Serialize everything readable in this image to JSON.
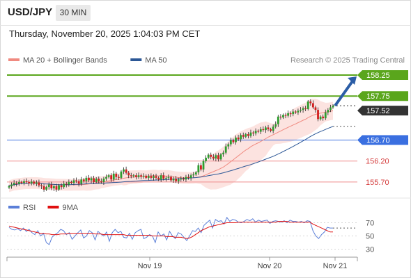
{
  "header": {
    "symbol": "USD/JPY",
    "timeframe": "30 MIN",
    "datetime": "Thursday, November 20, 2025 1:04:03 PM CET"
  },
  "colors": {
    "ma20": "#f08a80",
    "ma50": "#2c5796",
    "bollinger_fill": "#fbdad5",
    "resistance": "#5aa61c",
    "support": "#ef8c8c",
    "current": "#3a6fe0",
    "rsi": "#5b7fd8",
    "rsi_ma": "#e01010",
    "arrow": "#2b5da6",
    "candle_up": "#2e9c2e",
    "candle_down": "#d11f1f"
  },
  "chart_data": [
    {
      "type": "candlestick",
      "legend": [
        {
          "label": "MA 20 + Bollinger Bands",
          "color": "#f08a80"
        },
        {
          "label": "MA 50",
          "color": "#2c5796"
        }
      ],
      "credit": "Research © 2025 Trading Central",
      "x_ticks": [
        "Nov 19",
        "Nov 20",
        "Nov 21"
      ],
      "ylim": [
        155.4,
        158.35
      ],
      "levels": [
        {
          "value": 158.25,
          "label": "158.25",
          "kind": "target"
        },
        {
          "value": 157.75,
          "label": "157.75",
          "kind": "pivot"
        },
        {
          "value": 157.52,
          "label": "157.52",
          "kind": "last"
        },
        {
          "value": 156.7,
          "label": "156.70",
          "kind": "current"
        },
        {
          "value": 156.2,
          "label": "156.20",
          "kind": "support"
        },
        {
          "value": 155.7,
          "label": "155.70",
          "kind": "support"
        }
      ],
      "close": [
        155.6,
        155.64,
        155.68,
        155.66,
        155.7,
        155.68,
        155.72,
        155.7,
        155.67,
        155.71,
        155.66,
        155.69,
        155.62,
        155.6,
        155.52,
        155.58,
        155.64,
        155.55,
        155.6,
        155.52,
        155.62,
        155.58,
        155.66,
        155.64,
        155.7,
        155.68,
        155.74,
        155.72,
        155.66,
        155.76,
        155.72,
        155.8,
        155.74,
        155.79,
        155.7,
        155.78,
        155.72,
        155.7,
        155.78,
        155.82,
        155.86,
        155.76,
        155.9,
        155.82,
        155.8,
        155.95,
        156.0,
        155.92,
        155.86,
        155.84,
        155.86,
        155.82,
        155.86,
        155.83,
        155.85,
        155.8,
        155.84,
        155.8,
        155.84,
        155.8,
        155.76,
        155.86,
        155.78,
        155.8,
        155.82,
        155.74,
        155.78,
        155.72,
        155.76,
        155.78,
        155.76,
        155.82,
        155.8,
        155.86,
        155.88,
        155.93,
        156.1,
        156.0,
        156.2,
        156.28,
        156.35,
        156.3,
        156.26,
        156.34,
        156.24,
        156.36,
        156.4,
        156.55,
        156.6,
        156.7,
        156.65,
        156.76,
        156.72,
        156.82,
        156.78,
        156.84,
        156.8,
        156.88,
        156.86,
        156.92,
        156.9,
        156.96,
        156.94,
        157.0,
        156.96,
        156.92,
        157.02,
        157.08,
        157.26,
        157.24,
        157.3,
        157.28,
        157.34,
        157.32,
        157.38,
        157.36,
        157.4,
        157.42,
        157.46,
        157.44,
        157.62,
        157.58,
        157.48,
        157.42,
        157.2,
        157.26,
        157.22,
        157.36,
        157.42,
        157.48,
        157.52
      ]
    },
    {
      "type": "line",
      "legend": [
        {
          "label": "RSI",
          "color": "#5b7fd8"
        },
        {
          "label": "9MA",
          "color": "#e01010"
        }
      ],
      "yticks": [
        "70",
        "50",
        "30"
      ],
      "ylim": [
        20,
        80
      ],
      "rsi": [
        63,
        60,
        59,
        61,
        58,
        62,
        57,
        60,
        55,
        52,
        58,
        50,
        54,
        40,
        37,
        48,
        52,
        55,
        60,
        58,
        52,
        55,
        45,
        50,
        55,
        59,
        47,
        50,
        58,
        55,
        44,
        57,
        53,
        50,
        56,
        42,
        55,
        60,
        55,
        57,
        48,
        47,
        54,
        45,
        55,
        58,
        60,
        46,
        48,
        52,
        50,
        40,
        56,
        50,
        53,
        44,
        57,
        50,
        46,
        55,
        53,
        48,
        43,
        50,
        58,
        57,
        62,
        55,
        66,
        70,
        74,
        62,
        75,
        72,
        73,
        68,
        78,
        72,
        75,
        74,
        71,
        70,
        72,
        75,
        73,
        76,
        71,
        74,
        72,
        73,
        74,
        69,
        72,
        73,
        72,
        71,
        73,
        70,
        74,
        72,
        72,
        71,
        72,
        70,
        73,
        72,
        58,
        50,
        46,
        52,
        56,
        63,
        62,
        62
      ],
      "ma9": [
        65,
        64,
        63,
        62,
        61,
        60,
        59,
        58,
        57,
        56,
        55,
        54,
        54,
        53,
        53,
        52,
        52,
        52,
        53,
        53,
        53,
        54,
        54,
        54,
        54,
        54,
        54,
        54,
        54,
        54,
        53,
        53,
        53,
        52,
        52,
        52,
        52,
        52,
        52,
        52,
        52,
        51,
        51,
        51,
        51,
        51,
        51,
        51,
        51,
        51,
        50,
        50,
        50,
        50,
        50,
        49,
        49,
        49,
        48,
        48,
        48,
        47,
        46,
        47,
        49,
        52,
        55,
        58,
        60,
        62,
        64,
        65,
        66,
        67,
        68,
        69,
        70,
        70,
        70,
        70,
        71,
        71,
        71,
        71,
        71,
        71,
        71,
        71,
        71,
        71,
        71,
        71,
        71,
        71,
        72,
        72,
        72,
        72,
        71,
        71,
        71,
        71,
        71,
        71,
        71,
        71,
        68,
        66,
        64,
        62,
        60,
        58,
        56,
        56
      ]
    }
  ]
}
